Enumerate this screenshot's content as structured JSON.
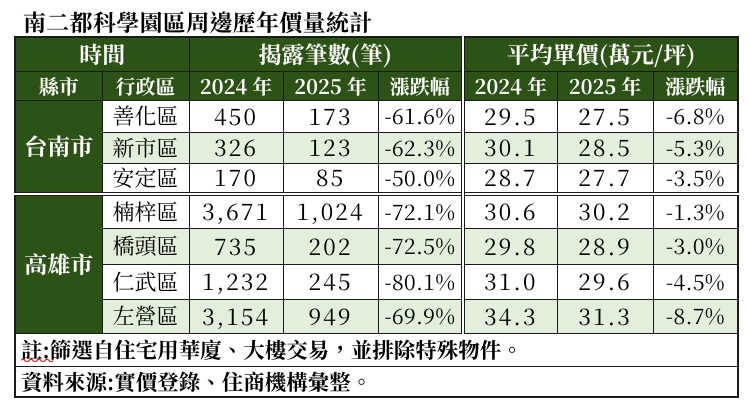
{
  "title": "南二都科學園區周邊歷年價量統計",
  "colors": {
    "header_green": "#2f5617",
    "row_alternate_green": "#e2efda",
    "grid_border": "#1b1b1b",
    "header_text": "#ffffff",
    "body_text": "#000000",
    "spellcheck_underline_red": "#cc1111",
    "page_background": "#ffffff"
  },
  "table": {
    "group_headers": [
      {
        "label": "時間",
        "span": 2
      },
      {
        "label": "揭露筆數(筆)",
        "span": 3
      },
      {
        "label": "平均單價(萬元/坪)",
        "span": 3
      }
    ],
    "column_headers": [
      "縣市",
      "行政區",
      "2024 年",
      "2025 年",
      "漲跌幅",
      "2024 年",
      "2025 年",
      "漲跌幅"
    ],
    "city_groups": [
      {
        "city": "台南市",
        "rows": [
          {
            "district": "善化區",
            "count_2024": "450",
            "count_2025": "173",
            "count_change": "-61.6%",
            "price_2024": "29.5",
            "price_2025": "27.5",
            "price_change": "-6.8%"
          },
          {
            "district": "新市區",
            "count_2024": "326",
            "count_2025": "123",
            "count_change": "-62.3%",
            "price_2024": "30.1",
            "price_2025": "28.5",
            "price_change": "-5.3%"
          },
          {
            "district": "安定區",
            "count_2024": "170",
            "count_2025": "85",
            "count_change": "-50.0%",
            "price_2024": "28.7",
            "price_2025": "27.7",
            "price_change": "-3.5%"
          }
        ]
      },
      {
        "city": "高雄市",
        "rows": [
          {
            "district": "楠梓區",
            "count_2024": "3,671",
            "count_2025": "1,024",
            "count_change": "-72.1%",
            "price_2024": "30.6",
            "price_2025": "30.2",
            "price_change": "-1.3%"
          },
          {
            "district": "橋頭區",
            "count_2024": "735",
            "count_2025": "202",
            "count_change": "-72.5%",
            "price_2024": "29.8",
            "price_2025": "28.9",
            "price_change": "-3.0%"
          },
          {
            "district": "仁武區",
            "count_2024": "1,232",
            "count_2025": "245",
            "count_change": "-80.1%",
            "price_2024": "31.0",
            "price_2025": "29.6",
            "price_change": "-4.5%"
          },
          {
            "district": "左營區",
            "count_2024": "3,154",
            "count_2025": "949",
            "count_change": "-69.9%",
            "price_2024": "34.3",
            "price_2025": "31.3",
            "price_change": "-8.7%"
          }
        ]
      }
    ],
    "footnotes": [
      {
        "prefix": "註:",
        "text": "篩選自住宅用華廈、大樓交易，並排除特殊物件。",
        "spellcheck_underline": true
      },
      {
        "prefix": "",
        "text": "資料來源:實價登錄、住商機構彙整。",
        "spellcheck_underline": false
      }
    ]
  },
  "chart_data": {
    "type": "table",
    "title": "南二都科學園區周邊歷年價量統計",
    "column_groups": [
      "時間",
      "揭露筆數(筆)",
      "平均單價(萬元/坪)"
    ],
    "columns": [
      "縣市",
      "行政區",
      "揭露筆數 2024年",
      "揭露筆數 2025年",
      "揭露筆數 漲跌幅",
      "平均單價 2024年",
      "平均單價 2025年",
      "平均單價 漲跌幅"
    ],
    "units": {
      "揭露筆數": "筆",
      "平均單價": "萬元/坪"
    },
    "rows": [
      [
        "台南市",
        "善化區",
        450,
        173,
        "-61.6%",
        29.5,
        27.5,
        "-6.8%"
      ],
      [
        "台南市",
        "新市區",
        326,
        123,
        "-62.3%",
        30.1,
        28.5,
        "-5.3%"
      ],
      [
        "台南市",
        "安定區",
        170,
        85,
        "-50.0%",
        28.7,
        27.7,
        "-3.5%"
      ],
      [
        "高雄市",
        "楠梓區",
        3671,
        1024,
        "-72.1%",
        30.6,
        30.2,
        "-1.3%"
      ],
      [
        "高雄市",
        "橋頭區",
        735,
        202,
        "-72.5%",
        29.8,
        28.9,
        "-3.0%"
      ],
      [
        "高雄市",
        "仁武區",
        1232,
        245,
        "-80.1%",
        31.0,
        29.6,
        "-4.5%"
      ],
      [
        "高雄市",
        "左營區",
        3154,
        949,
        "-69.9%",
        34.3,
        31.3,
        "-8.7%"
      ]
    ],
    "notes": [
      "註:篩選自住宅用華廈、大樓交易，並排除特殊物件。",
      "資料來源:實價登錄、住商機構彙整。"
    ]
  }
}
